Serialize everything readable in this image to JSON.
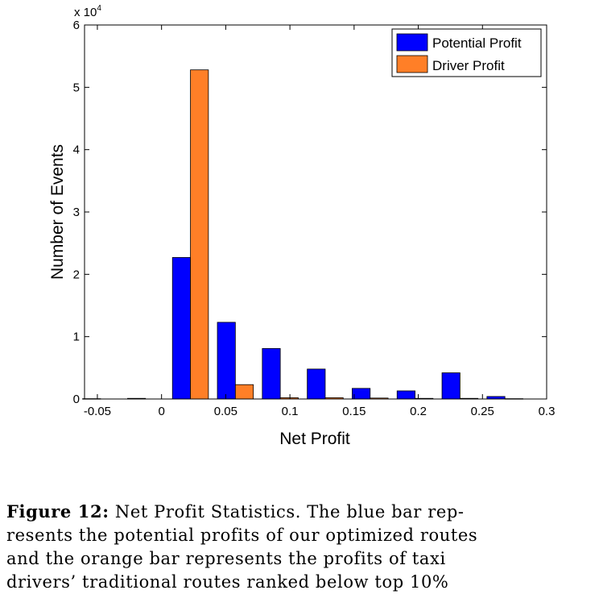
{
  "chart_data": {
    "type": "bar",
    "xlabel": "Net Profit",
    "ylabel": "Number of Events",
    "y_multiplier_base": "x 10",
    "y_multiplier_exp": "4",
    "xlim": [
      -0.06,
      0.3
    ],
    "ylim": [
      0,
      6
    ],
    "x_ticks": [
      -0.05,
      0,
      0.05,
      0.1,
      0.15,
      0.2,
      0.25,
      0.3
    ],
    "x_tick_labels": [
      "-0.05",
      "0",
      "0.05",
      "0.1",
      "0.15",
      "0.2",
      "0.25",
      "0.3"
    ],
    "y_ticks": [
      0,
      1,
      2,
      3,
      4,
      5,
      6
    ],
    "y_tick_labels": [
      "0",
      "1",
      "2",
      "3",
      "4",
      "5",
      "6"
    ],
    "bin_centers": [
      -0.0475,
      -0.0125,
      0.0225,
      0.0575,
      0.0925,
      0.1275,
      0.1625,
      0.1975,
      0.2325,
      0.2675
    ],
    "bin_width": 0.035,
    "legend_position": "top-right",
    "grid": false,
    "series": [
      {
        "name": "Potential Profit",
        "color": "#0000ff",
        "values": [
          0.005,
          0.01,
          2.27,
          1.23,
          0.81,
          0.48,
          0.17,
          0.13,
          0.42,
          0.04
        ]
      },
      {
        "name": "Driver Profit",
        "color": "#ff7f27",
        "values": [
          0,
          0,
          5.28,
          0.23,
          0.02,
          0.02,
          0.015,
          0.01,
          0.01,
          0.005
        ]
      }
    ]
  },
  "caption": {
    "label": "Figure 12:",
    "line1": "Net Profit Statistics. The blue bar rep-",
    "line2": "resents the potential profits of our optimized routes",
    "line3": "and the orange bar represents the profits of taxi",
    "line4": "drivers’ traditional routes ranked below top 10%"
  }
}
